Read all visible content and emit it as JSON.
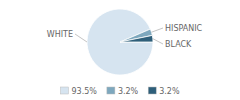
{
  "chart_data": {
    "type": "pie",
    "categories": [
      "WHITE",
      "HISPANIC",
      "BLACK"
    ],
    "values": [
      93.5,
      3.2,
      3.2
    ],
    "value_labels": [
      "93.5%",
      "3.2%",
      "3.2%"
    ],
    "colors": [
      "#d6e4f0",
      "#7ea8be",
      "#2e5f7a"
    ],
    "legend": "bottom"
  }
}
